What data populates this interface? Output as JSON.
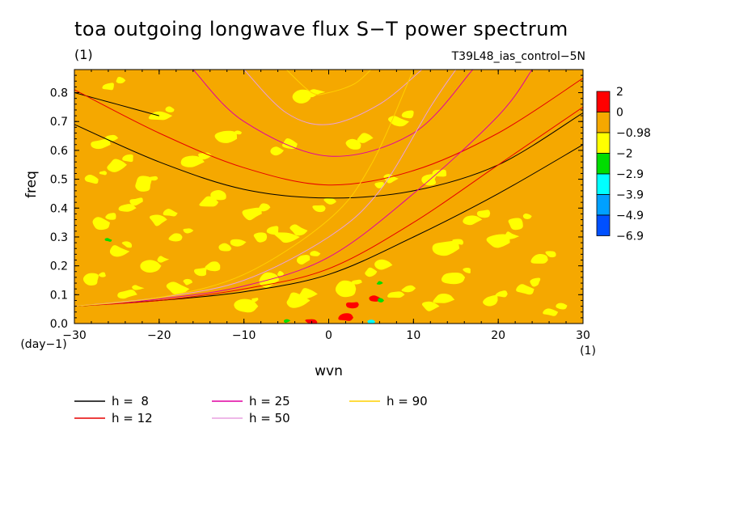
{
  "header": {
    "title": "toa outgoing longwave flux S−T power spectrum",
    "subtitle_left": "(1)",
    "subtitle_right": "T39L48_ias_control−5N"
  },
  "chart_data": {
    "type": "heatmap",
    "title": "toa outgoing longwave flux S−T power spectrum",
    "xlabel": "wvn",
    "ylabel": "freq",
    "x_unit": "(1)",
    "y_unit": "(day−1)",
    "xlim": [
      -30,
      30
    ],
    "ylim": [
      0,
      0.88
    ],
    "x_ticks": [
      -30,
      -20,
      -10,
      0,
      10,
      20,
      30
    ],
    "y_ticks": [
      0.0,
      0.1,
      0.2,
      0.3,
      0.4,
      0.5,
      0.6,
      0.7,
      0.8
    ],
    "x_tick_labels": [
      "−30",
      "−20",
      "−10",
      "0",
      "10",
      "20",
      "30"
    ],
    "y_tick_labels": [
      "0.0",
      "0.1",
      "0.2",
      "0.3",
      "0.4",
      "0.5",
      "0.6",
      "0.7",
      "0.8"
    ],
    "background_level_color": "#f5a800",
    "colorbar": {
      "levels": [
        "2",
        "0",
        "−0.98",
        "−2",
        "−2.9",
        "−3.9",
        "−4.9",
        "−6.9"
      ],
      "colors": [
        "#ff0000",
        "#f5a800",
        "#ffff00",
        "#00dd00",
        "#00ffff",
        "#00a0ff",
        "#0050ff"
      ]
    },
    "dispersion_legend": [
      {
        "label": "h =  8",
        "color": "#000000"
      },
      {
        "label": "h = 12",
        "color": "#e60000"
      },
      {
        "label": "h = 25",
        "color": "#e000a0"
      },
      {
        "label": "h = 50",
        "color": "#e8a0e0"
      },
      {
        "label": "h = 90",
        "color": "#ffd000"
      }
    ],
    "dispersion_curves": [
      {
        "name": "h = 8",
        "kind": "kelvin",
        "points": [
          [
            -30,
            0.06
          ],
          [
            -20,
            0.08
          ],
          [
            -10,
            0.11
          ],
          [
            0,
            0.17
          ],
          [
            10,
            0.3
          ],
          [
            20,
            0.45
          ],
          [
            30,
            0.62
          ]
        ]
      },
      {
        "name": "h = 8",
        "kind": "inertia-gravity",
        "points": [
          [
            -30,
            0.69
          ],
          [
            -20,
            0.56
          ],
          [
            -10,
            0.465
          ],
          [
            0,
            0.435
          ],
          [
            10,
            0.46
          ],
          [
            20,
            0.55
          ],
          [
            30,
            0.73
          ]
        ]
      },
      {
        "name": "h = 8",
        "kind": "inertia-gravity-2",
        "points": [
          [
            -30,
            0.8
          ],
          [
            -25,
            0.76
          ],
          [
            -20,
            0.72
          ]
        ]
      },
      {
        "name": "h = 12",
        "kind": "kelvin",
        "points": [
          [
            -30,
            0.06
          ],
          [
            -20,
            0.08
          ],
          [
            -10,
            0.12
          ],
          [
            0,
            0.19
          ],
          [
            10,
            0.35
          ],
          [
            20,
            0.55
          ],
          [
            30,
            0.75
          ]
        ]
      },
      {
        "name": "h = 12",
        "kind": "inertia-gravity",
        "points": [
          [
            -30,
            0.81
          ],
          [
            -20,
            0.66
          ],
          [
            -10,
            0.54
          ],
          [
            0,
            0.48
          ],
          [
            10,
            0.53
          ],
          [
            20,
            0.66
          ],
          [
            30,
            0.85
          ]
        ]
      },
      {
        "name": "h = 25",
        "kind": "kelvin",
        "points": [
          [
            -30,
            0.06
          ],
          [
            -20,
            0.085
          ],
          [
            -10,
            0.13
          ],
          [
            0,
            0.23
          ],
          [
            10,
            0.45
          ],
          [
            20,
            0.72
          ],
          [
            24,
            0.88
          ]
        ]
      },
      {
        "name": "h = 25",
        "kind": "inertia-gravity",
        "points": [
          [
            -16,
            0.88
          ],
          [
            -10,
            0.7
          ],
          [
            0,
            0.58
          ],
          [
            10,
            0.66
          ],
          [
            17,
            0.88
          ]
        ]
      },
      {
        "name": "h = 50",
        "kind": "kelvin",
        "points": [
          [
            -30,
            0.06
          ],
          [
            -20,
            0.09
          ],
          [
            -10,
            0.15
          ],
          [
            0,
            0.3
          ],
          [
            6,
            0.46
          ],
          [
            12,
            0.75
          ],
          [
            15,
            0.88
          ]
        ]
      },
      {
        "name": "h = 50",
        "kind": "inertia-gravity",
        "points": [
          [
            -10,
            0.88
          ],
          [
            -5,
            0.73
          ],
          [
            0,
            0.69
          ],
          [
            6,
            0.76
          ],
          [
            11,
            0.88
          ]
        ]
      },
      {
        "name": "h = 90",
        "kind": "kelvin",
        "points": [
          [
            -30,
            0.06
          ],
          [
            -20,
            0.09
          ],
          [
            -10,
            0.17
          ],
          [
            0,
            0.36
          ],
          [
            5,
            0.55
          ],
          [
            10,
            0.88
          ]
        ]
      },
      {
        "name": "h = 90",
        "kind": "inertia-gravity",
        "points": [
          [
            -5,
            0.88
          ],
          [
            -2,
            0.8
          ],
          [
            0,
            0.8
          ],
          [
            3,
            0.83
          ],
          [
            5,
            0.88
          ]
        ]
      }
    ],
    "yellow_patches": [
      [
        -27,
        0.62
      ],
      [
        -25,
        0.55
      ],
      [
        -22,
        0.48
      ],
      [
        -28,
        0.5
      ],
      [
        -24,
        0.4
      ],
      [
        -20,
        0.36
      ],
      [
        -27,
        0.35
      ],
      [
        -18,
        0.3
      ],
      [
        -25,
        0.25
      ],
      [
        -21,
        0.2
      ],
      [
        -28,
        0.15
      ],
      [
        -24,
        0.1
      ],
      [
        -18,
        0.12
      ],
      [
        -15,
        0.18
      ],
      [
        -12,
        0.26
      ],
      [
        -8,
        0.3
      ],
      [
        -14,
        0.42
      ],
      [
        -9,
        0.38
      ],
      [
        -5,
        0.3
      ],
      [
        -3,
        0.22
      ],
      [
        -7,
        0.15
      ],
      [
        -10,
        0.06
      ],
      [
        -4,
        0.08
      ],
      [
        2,
        0.12
      ],
      [
        5,
        0.18
      ],
      [
        8,
        0.1
      ],
      [
        12,
        0.06
      ],
      [
        15,
        0.16
      ],
      [
        19,
        0.08
      ],
      [
        23,
        0.12
      ],
      [
        26,
        0.04
      ],
      [
        14,
        0.26
      ],
      [
        20,
        0.28
      ],
      [
        25,
        0.22
      ],
      [
        17,
        0.36
      ],
      [
        -16,
        0.56
      ],
      [
        -12,
        0.64
      ],
      [
        -20,
        0.72
      ],
      [
        -6,
        0.6
      ],
      [
        3,
        0.62
      ],
      [
        8,
        0.7
      ],
      [
        -3,
        0.78
      ],
      [
        12,
        0.5
      ],
      [
        -26,
        0.82
      ],
      [
        22,
        0.35
      ],
      [
        -1,
        0.4
      ],
      [
        6,
        0.48
      ]
    ],
    "red_patches": [
      [
        2,
        0.02
      ],
      [
        -2,
        0.005
      ],
      [
        3,
        0.065
      ],
      [
        5.5,
        0.085
      ]
    ],
    "green_patches": [
      [
        -26,
        0.29
      ],
      [
        6,
        0.14
      ],
      [
        6,
        0.08
      ],
      [
        -5,
        0.01
      ],
      [
        5,
        0.0
      ]
    ],
    "cyan_patches": [
      [
        5,
        0.005
      ]
    ]
  }
}
